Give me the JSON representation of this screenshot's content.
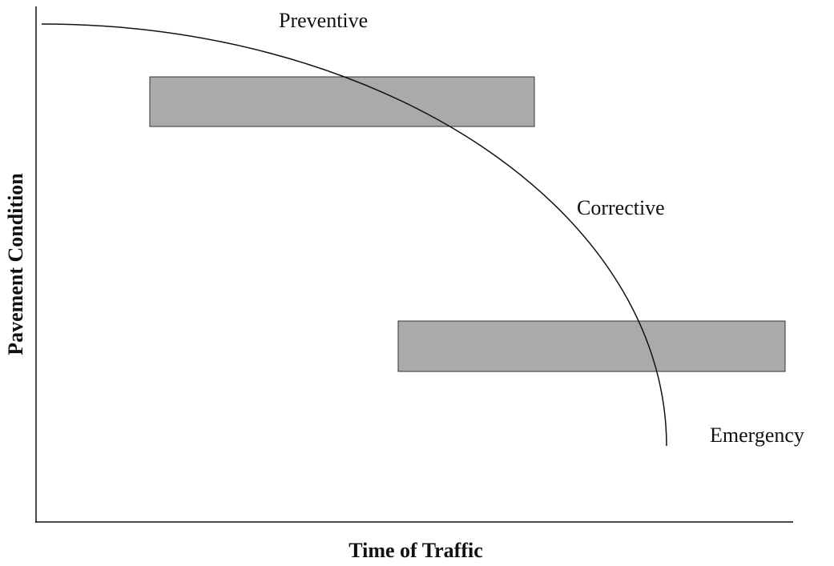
{
  "labels": {
    "preventive": "Preventive",
    "corrective": "Corrective",
    "emergency": "Emergency"
  },
  "axes": {
    "y_label": "Pavement Condition",
    "x_label": "Time of Traffic"
  }
}
